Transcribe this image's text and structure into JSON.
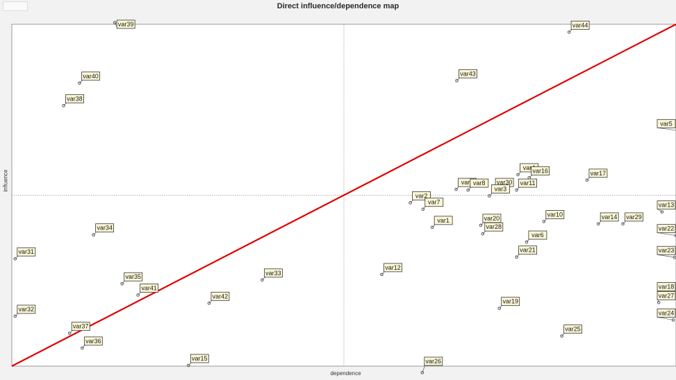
{
  "page": {
    "title": "Direct influence/dependence map"
  },
  "colors": {
    "background": "#f2f2f2",
    "plot_background": "#ffffff",
    "border": "#9a9a9a",
    "diagonal": "#e00000",
    "label_fill": "#fbf7d6",
    "label_border": "#333333",
    "marker": "#555555"
  },
  "chart_data": {
    "type": "scatter",
    "title": "Direct influence/dependence map",
    "xlabel": "dependence",
    "ylabel": "influence",
    "xlim": [
      0,
      100
    ],
    "ylim": [
      0,
      100
    ],
    "grid": false,
    "dashed_midlines": {
      "x": 50,
      "y": 50
    },
    "diagonal_line": {
      "from": [
        0,
        0
      ],
      "to": [
        100,
        100
      ]
    },
    "points": [
      {
        "name": "var39",
        "x": 15.5,
        "y": 100.5
      },
      {
        "name": "var40",
        "x": 10.2,
        "y": 82.8
      },
      {
        "name": "var38",
        "x": 7.8,
        "y": 76.2
      },
      {
        "name": "var44",
        "x": 83.9,
        "y": 97.7
      },
      {
        "name": "var43",
        "x": 67.0,
        "y": 83.5
      },
      {
        "name": "var5",
        "x": 100.3,
        "y": 68.9
      },
      {
        "name": "var4",
        "x": 76.2,
        "y": 56.0
      },
      {
        "name": "var17",
        "x": 86.6,
        "y": 54.4
      },
      {
        "name": "var30",
        "x": 72.5,
        "y": 51.7
      },
      {
        "name": "var16",
        "x": 77.9,
        "y": 55.1
      },
      {
        "name": "var9",
        "x": 66.9,
        "y": 51.7
      },
      {
        "name": "var8",
        "x": 68.7,
        "y": 51.5
      },
      {
        "name": "var11",
        "x": 76.0,
        "y": 51.5
      },
      {
        "name": "var3",
        "x": 71.9,
        "y": 49.8
      },
      {
        "name": "var2",
        "x": 60.0,
        "y": 47.8
      },
      {
        "name": "var7",
        "x": 61.9,
        "y": 45.9
      },
      {
        "name": "var13",
        "x": 97.9,
        "y": 45.1
      },
      {
        "name": "var10",
        "x": 80.1,
        "y": 42.3
      },
      {
        "name": "var14",
        "x": 88.3,
        "y": 41.6
      },
      {
        "name": "var29",
        "x": 92.0,
        "y": 41.6
      },
      {
        "name": "var20",
        "x": 70.6,
        "y": 41.2
      },
      {
        "name": "var1",
        "x": 63.3,
        "y": 40.6
      },
      {
        "name": "var22",
        "x": 100.0,
        "y": 38.2
      },
      {
        "name": "var28",
        "x": 70.9,
        "y": 38.7
      },
      {
        "name": "var6",
        "x": 77.5,
        "y": 36.3
      },
      {
        "name": "var21",
        "x": 76.0,
        "y": 31.9
      },
      {
        "name": "var23",
        "x": 99.8,
        "y": 31.8
      },
      {
        "name": "var34",
        "x": 12.3,
        "y": 38.4
      },
      {
        "name": "var31",
        "x": 0.5,
        "y": 31.4
      },
      {
        "name": "var12",
        "x": 55.7,
        "y": 26.8
      },
      {
        "name": "var35",
        "x": 16.6,
        "y": 24.1
      },
      {
        "name": "var33",
        "x": 37.7,
        "y": 25.2
      },
      {
        "name": "var41",
        "x": 19.0,
        "y": 20.8
      },
      {
        "name": "var18",
        "x": 100.3,
        "y": 21.2
      },
      {
        "name": "var27",
        "x": 97.4,
        "y": 18.6
      },
      {
        "name": "var42",
        "x": 29.7,
        "y": 18.4
      },
      {
        "name": "var19",
        "x": 73.4,
        "y": 16.9
      },
      {
        "name": "var32",
        "x": 0.5,
        "y": 14.6
      },
      {
        "name": "var24",
        "x": 99.6,
        "y": 13.5
      },
      {
        "name": "var37",
        "x": 8.7,
        "y": 9.6
      },
      {
        "name": "var25",
        "x": 82.8,
        "y": 8.8
      },
      {
        "name": "var36",
        "x": 10.6,
        "y": 5.3
      },
      {
        "name": "var15",
        "x": 26.6,
        "y": 0.2
      },
      {
        "name": "var26",
        "x": 61.8,
        "y": -1.9
      }
    ]
  }
}
